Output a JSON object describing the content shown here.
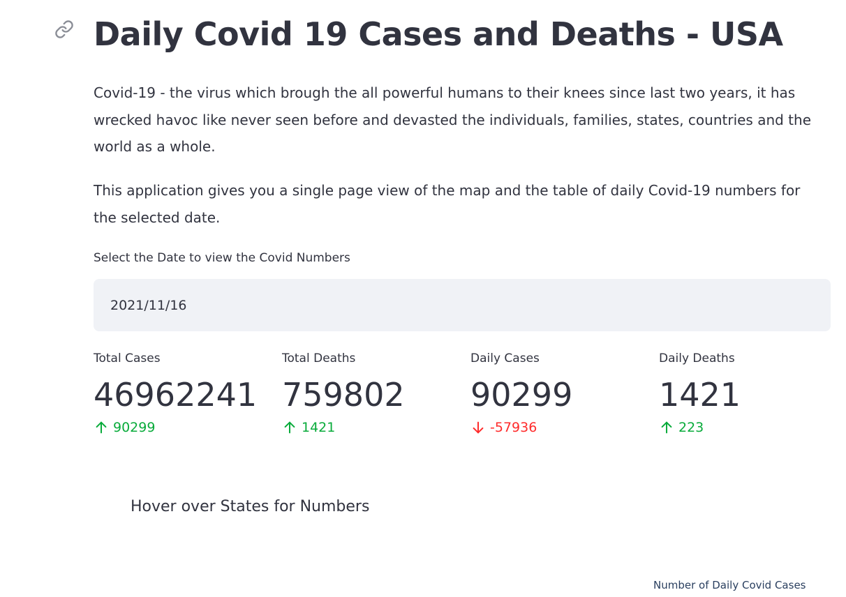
{
  "header": {
    "title": "Daily Covid 19 Cases and Deaths - USA"
  },
  "intro": {
    "paragraph1": "Covid-19 - the virus which brough the all powerful humans to their knees since last two years, it has wrecked havoc like never seen before and devasted the individuals, families, states, countries and the world as a whole.",
    "paragraph2": "This application gives you a single page view of the map and the table of daily Covid-19 numbers for the selected date."
  },
  "date_picker": {
    "label": "Select the Date to view the Covid Numbers",
    "value": "2021/11/16"
  },
  "metrics": [
    {
      "label": "Total Cases",
      "value": "46962241",
      "delta": "90299",
      "direction": "up"
    },
    {
      "label": "Total Deaths",
      "value": "759802",
      "delta": "1421",
      "direction": "up"
    },
    {
      "label": "Daily Cases",
      "value": "90299",
      "delta": "-57936",
      "direction": "down"
    },
    {
      "label": "Daily Deaths",
      "value": "1421",
      "delta": "223",
      "direction": "up"
    }
  ],
  "map": {
    "title": "Hover over States for Numbers",
    "legend_title": "Number of Daily Covid Cases"
  },
  "colors": {
    "text": "#31333f",
    "input_bg": "#f0f2f6",
    "delta_up": "#09ab3b",
    "delta_down": "#ff2b2b",
    "legend_text": "#2a3f5f"
  },
  "icons": {
    "anchor": "link-icon",
    "up": "arrow-up-icon",
    "down": "arrow-down-icon"
  }
}
